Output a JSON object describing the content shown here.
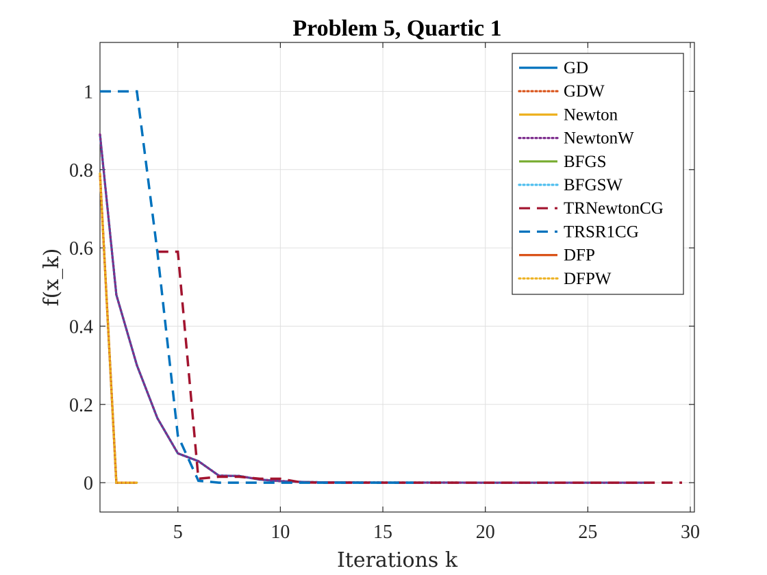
{
  "chart_data": {
    "type": "line",
    "title": "Problem 5, Quartic 1",
    "xlabel": "Iterations k",
    "ylabel": "f(x_k)",
    "xlim": [
      1.2,
      30.2
    ],
    "ylim": [
      -0.075,
      1.125
    ],
    "xticks": [
      5,
      10,
      15,
      20,
      25,
      30
    ],
    "yticks": [
      0,
      0.2,
      0.4,
      0.6,
      0.8,
      1
    ],
    "ytick_labels": [
      "0",
      "0.2",
      "0.4",
      "0.6",
      "0.8",
      "1"
    ],
    "grid": true,
    "legend_position": "top-right",
    "series": [
      {
        "name": "GD",
        "color": "#0072BD",
        "dash": "solid",
        "x": [
          1.2,
          2,
          3,
          4,
          5,
          6,
          7,
          8,
          9,
          10,
          11,
          12,
          14,
          16,
          18,
          20,
          22,
          24,
          26,
          28
        ],
        "y": [
          0.89,
          0.48,
          0.3,
          0.165,
          0.075,
          0.055,
          0.018,
          0.017,
          0.008,
          0.004,
          0.002,
          0.001,
          0.0005,
          0.0003,
          0.0002,
          0.0001,
          0.0001,
          0.0001,
          0.0001,
          0.0001
        ]
      },
      {
        "name": "GDW",
        "color": "#D95319",
        "dash": "dotted",
        "x": [
          1.2,
          2,
          3,
          4,
          5,
          6,
          7,
          8,
          9,
          10,
          11,
          12,
          14,
          16,
          18,
          20,
          22,
          24,
          26,
          28
        ],
        "y": [
          0.89,
          0.48,
          0.3,
          0.165,
          0.075,
          0.055,
          0.018,
          0.017,
          0.008,
          0.004,
          0.002,
          0.001,
          0.0005,
          0.0003,
          0.0002,
          0.0001,
          0.0001,
          0.0001,
          0.0001,
          0.0001
        ]
      },
      {
        "name": "Newton",
        "color": "#EDB120",
        "dash": "solid",
        "x": [
          1.2,
          2,
          3
        ],
        "y": [
          0.79,
          0.0,
          0.0
        ]
      },
      {
        "name": "NewtonW",
        "color": "#7E2F8E",
        "dash": "dotted",
        "x": [
          1.2,
          2,
          3,
          4,
          5,
          6,
          7,
          8,
          9,
          10,
          11,
          12,
          14,
          16,
          18,
          20,
          22,
          24,
          26,
          28
        ],
        "y": [
          0.89,
          0.48,
          0.3,
          0.165,
          0.075,
          0.055,
          0.018,
          0.017,
          0.008,
          0.004,
          0.002,
          0.001,
          0.0005,
          0.0003,
          0.0002,
          0.0001,
          0.0001,
          0.0001,
          0.0001,
          0.0001
        ]
      },
      {
        "name": "BFGS",
        "color": "#77AC30",
        "dash": "solid",
        "x": [
          1.2,
          2,
          3
        ],
        "y": [
          0.79,
          0.0,
          0.0
        ]
      },
      {
        "name": "BFGSW",
        "color": "#4DBEEE",
        "dash": "dotted",
        "x": [
          1.2,
          2,
          3
        ],
        "y": [
          0.79,
          0.0,
          0.0
        ]
      },
      {
        "name": "TRNewtonCG",
        "color": "#A2142F",
        "dash": "dashed",
        "x": [
          4,
          5,
          6,
          7,
          8,
          9,
          10,
          11,
          12,
          15,
          20,
          25,
          29.6
        ],
        "y": [
          0.59,
          0.59,
          0.01,
          0.015,
          0.015,
          0.01,
          0.01,
          0.001,
          0.0,
          0.0,
          0.0,
          0.0,
          0.0
        ]
      },
      {
        "name": "TRSR1CG",
        "color": "#0072BD",
        "dash": "dashed",
        "x": [
          1.2,
          2,
          3,
          4,
          5,
          6,
          7,
          8,
          9,
          10,
          11,
          12,
          14,
          16.5
        ],
        "y": [
          1.0,
          1.0,
          1.0,
          0.59,
          0.12,
          0.005,
          0.0,
          0.0,
          0.0,
          0.0,
          0.0,
          0.0,
          0.0,
          0.0
        ]
      },
      {
        "name": "DFP",
        "color": "#D95319",
        "dash": "solid",
        "x": [
          1.2,
          2,
          3
        ],
        "y": [
          0.79,
          0.0,
          0.0
        ]
      },
      {
        "name": "DFPW",
        "color": "#EDB120",
        "dash": "dotted",
        "x": [
          1.2,
          2,
          3
        ],
        "y": [
          0.79,
          0.0,
          0.0
        ]
      }
    ]
  }
}
